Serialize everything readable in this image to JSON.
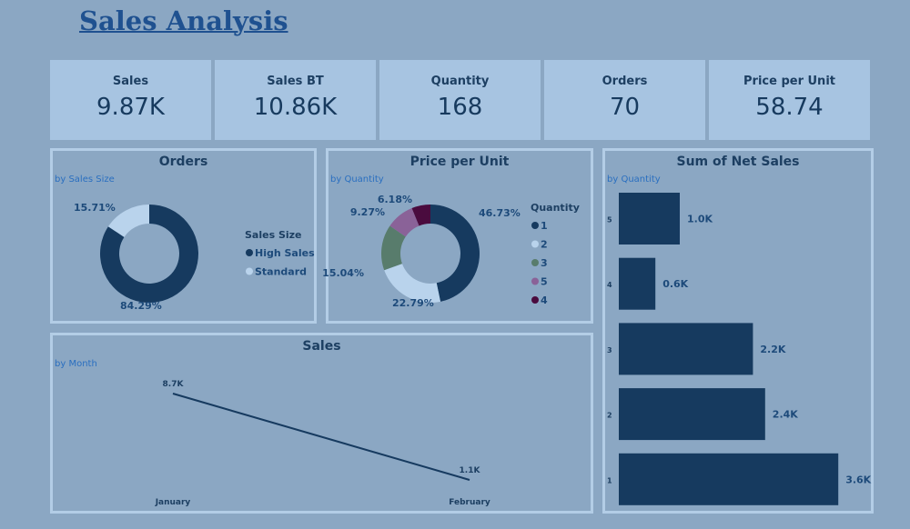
{
  "title": "Sales Analysis",
  "kpis": [
    {
      "label": "Sales",
      "value": "9.87K"
    },
    {
      "label": "Sales BT",
      "value": "10.86K"
    },
    {
      "label": "Quantity",
      "value": "168"
    },
    {
      "label": "Orders",
      "value": "70"
    },
    {
      "label": "Price per Unit",
      "value": "58.74"
    }
  ],
  "colors": {
    "navy": "#163a5f",
    "light": "#b9d3ec",
    "green": "#587c6c",
    "purple": "#8a6298",
    "maroon": "#4a0b3e",
    "background": "#8ba7c3"
  },
  "chart_data": [
    {
      "type": "pie",
      "title": "Orders",
      "subtitle": "by Sales Size",
      "legend_title": "Sales Size",
      "legend_placement": "right",
      "slices": [
        {
          "name": "High Sales",
          "value": 84.29,
          "label": "84.29%",
          "color": "#163a5f"
        },
        {
          "name": "Standard",
          "value": 15.71,
          "label": "15.71%",
          "color": "#b9d3ec"
        }
      ]
    },
    {
      "type": "pie",
      "title": "Price per Unit",
      "subtitle": "by Quantity",
      "legend_title": "Quantity",
      "legend_placement": "right",
      "slices": [
        {
          "name": "1",
          "value": 46.73,
          "label": "46.73%",
          "color": "#163a5f"
        },
        {
          "name": "2",
          "value": 22.79,
          "label": "22.79%",
          "color": "#b9d3ec"
        },
        {
          "name": "3",
          "value": 15.04,
          "label": "15.04%",
          "color": "#587c6c"
        },
        {
          "name": "5",
          "value": 9.27,
          "label": "9.27%",
          "color": "#8a6298"
        },
        {
          "name": "4",
          "value": 6.18,
          "label": "6.18%",
          "color": "#4a0b3e"
        }
      ]
    },
    {
      "type": "bar",
      "orientation": "horizontal",
      "title": "Sum of Net Sales",
      "subtitle": "by Quantity",
      "categories": [
        "5",
        "4",
        "3",
        "2",
        "1"
      ],
      "values": [
        1.0,
        0.6,
        2.2,
        2.4,
        3.6
      ],
      "labels": [
        "1.0K",
        "0.6K",
        "2.2K",
        "2.4K",
        "3.6K"
      ]
    },
    {
      "type": "line",
      "title": "Sales",
      "subtitle": "by Month",
      "categories": [
        "January",
        "February"
      ],
      "values": [
        8.7,
        1.1
      ],
      "labels": [
        "8.7K",
        "1.1K"
      ]
    }
  ]
}
